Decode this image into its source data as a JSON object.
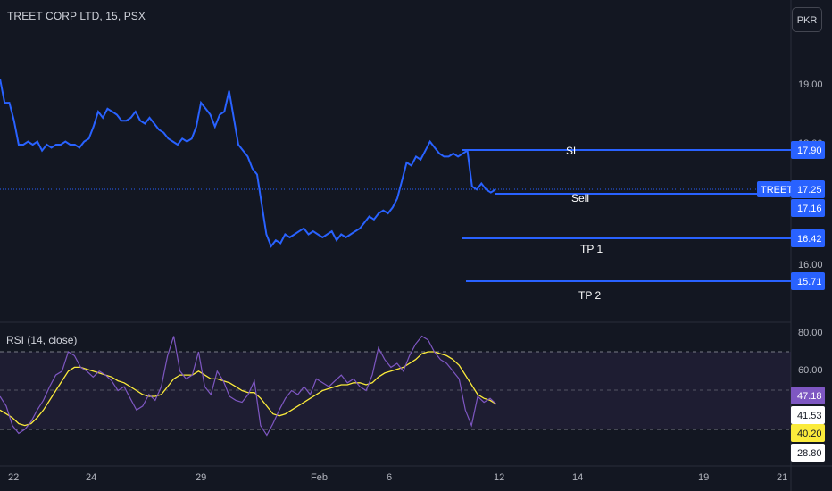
{
  "header": {
    "title": "TREET CORP LTD, 15, PSX",
    "currency_button": "PKR"
  },
  "colors": {
    "background": "#131722",
    "price_line": "#2962ff",
    "axis_text": "#b2b5be",
    "rsi_line": "#7e57c2",
    "rsi_ma": "#fbeb3b",
    "rsi_band": "#7e57c2"
  },
  "price_axis": {
    "ticks": [
      "19.00",
      "18.00",
      "17.00",
      "16.00"
    ]
  },
  "levels": [
    {
      "name": "SL",
      "value": "17.90"
    },
    {
      "name": "Sell",
      "value": "17.16"
    },
    {
      "name": "TP 1",
      "value": "16.42"
    },
    {
      "name": "TP 2",
      "value": "15.71"
    }
  ],
  "last_price": {
    "symbol": "TREET",
    "value": "17.25"
  },
  "rsi": {
    "title": "RSI (14, close)",
    "ticks": [
      "80.00",
      "60.00"
    ],
    "level_labels": [
      "47.18",
      "41.53",
      "40.20",
      "28.80"
    ]
  },
  "time_axis": {
    "labels": [
      "22",
      "24",
      "29",
      "Feb",
      "6",
      "12",
      "14",
      "19",
      "21"
    ]
  },
  "chart_data": [
    {
      "type": "line",
      "series": [
        {
          "values": [
            19.1,
            18.7,
            18.7,
            18.4,
            18.0,
            18.0,
            18.05,
            18.0,
            18.05,
            17.9,
            18.0,
            17.95,
            18.0,
            18.0,
            18.05,
            18.0,
            18.0,
            17.95,
            18.05,
            18.1,
            18.3,
            18.55,
            18.45,
            18.6,
            18.55,
            18.5,
            18.4,
            18.4,
            18.45,
            18.55,
            18.4,
            18.35,
            18.45,
            18.35,
            18.25,
            18.2,
            18.1,
            18.05,
            18.0,
            18.1,
            18.05,
            18.1,
            18.3,
            18.7,
            18.6,
            18.5,
            18.3,
            18.5,
            18.55,
            18.9,
            18.45,
            18.0,
            17.9,
            17.8,
            17.6,
            17.5,
            17.0,
            16.5,
            16.3,
            16.4,
            16.35,
            16.5,
            16.45,
            16.5,
            16.55,
            16.6,
            16.5,
            16.55,
            16.5,
            16.45,
            16.5,
            16.55,
            16.4,
            16.5,
            16.45,
            16.5,
            16.55,
            16.6,
            16.7,
            16.8,
            16.75,
            16.85,
            16.9,
            16.85,
            16.95,
            17.1,
            17.4,
            17.7,
            17.65,
            17.8,
            17.75,
            17.9,
            18.05,
            17.95,
            17.85,
            17.8,
            17.8,
            17.85,
            17.8,
            17.85,
            17.9,
            17.3,
            17.25,
            17.35,
            17.25,
            17.2,
            17.25
          ]
        }
      ]
    },
    {
      "type": "line",
      "series": [
        {
          "name": "RSI",
          "values": [
            47,
            42,
            32,
            28,
            30,
            34,
            40,
            45,
            52,
            58,
            60,
            70,
            68,
            62,
            60,
            57,
            60,
            58,
            55,
            50,
            52,
            46,
            40,
            42,
            48,
            45,
            52,
            68,
            78,
            60,
            56,
            58,
            70,
            52,
            48,
            60,
            55,
            47,
            45,
            44,
            48,
            55,
            32,
            27,
            33,
            40,
            46,
            50,
            48,
            52,
            48,
            56,
            54,
            52,
            55,
            58,
            54,
            56,
            52,
            50,
            58,
            72,
            66,
            62,
            64,
            60,
            68,
            74,
            78,
            76,
            70,
            66,
            64,
            60,
            56,
            40,
            32,
            47,
            44,
            46,
            43
          ]
        },
        {
          "name": "RSI MA",
          "values": [
            40,
            38,
            36,
            33,
            32,
            33,
            36,
            40,
            45,
            50,
            55,
            60,
            62,
            62,
            61,
            60,
            59,
            58,
            57,
            55,
            54,
            52,
            50,
            48,
            47,
            47,
            48,
            52,
            56,
            58,
            58,
            58,
            60,
            58,
            56,
            56,
            55,
            54,
            52,
            50,
            49,
            49,
            46,
            42,
            38,
            37,
            38,
            40,
            42,
            44,
            46,
            48,
            50,
            51,
            52,
            53,
            53,
            54,
            54,
            53,
            54,
            57,
            59,
            60,
            61,
            62,
            64,
            66,
            69,
            70,
            70,
            69,
            68,
            66,
            63,
            58,
            53,
            48,
            46,
            45,
            43
          ]
        }
      ]
    }
  ]
}
